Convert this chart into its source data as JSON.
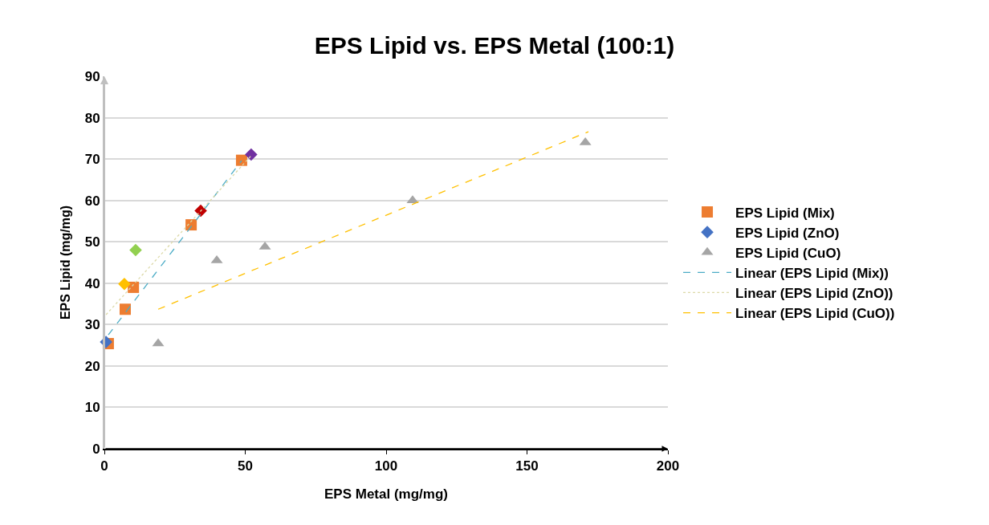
{
  "chart_data": {
    "type": "scatter",
    "title": "EPS Lipid vs. EPS Metal (100:1)",
    "xlabel": "EPS Metal (mg/mg)",
    "ylabel": "EPS Lipid (mg/mg)",
    "xlim": [
      0,
      200
    ],
    "xticks": [
      0,
      50,
      100,
      150,
      200
    ],
    "ylim": [
      0,
      90
    ],
    "yticks": [
      0,
      10,
      20,
      30,
      40,
      50,
      60,
      70,
      80,
      90
    ],
    "grid": "y",
    "legend": "right",
    "series": [
      {
        "name": "EPS Lipid (Mix)",
        "color": "#ed7d31",
        "marker": "square",
        "x": [
          1.4,
          7.4,
          10.3,
          30.8,
          48.7
        ],
        "values": [
          25.4,
          33.7,
          39,
          54.1,
          69.7
        ]
      },
      {
        "name": "EPS Lipid (ZnO)",
        "colors": [
          "#4472c4",
          "#ffc000",
          "#92d050",
          "#c00000",
          "#7030a0"
        ],
        "marker": "diamond",
        "x": [
          0.6,
          7.1,
          11.1,
          34.2,
          52.1
        ],
        "values": [
          25.8,
          39.8,
          48,
          57.5,
          71.1
        ]
      },
      {
        "name": "EPS Lipid (CuO)",
        "color": "#a5a5a5",
        "marker": "triangle",
        "x": [
          19.1,
          39.9,
          57,
          109.4,
          170.7
        ],
        "values": [
          25.4,
          45.5,
          48.8,
          60,
          74
        ]
      },
      {
        "name": "Linear (EPS Lipid (Mix))",
        "type": "line",
        "color": "#4bacc6",
        "line_style": "dashed",
        "marker": "none",
        "x": [
          1.4,
          48.7
        ],
        "values": [
          27.5,
          69.6
        ]
      },
      {
        "name": "Linear (EPS Lipid (ZnO))",
        "type": "line",
        "color": "#dcd9a8",
        "line_style": "dotted",
        "marker": "none",
        "x": [
          0.6,
          52.1
        ],
        "values": [
          32.4,
          70.8
        ]
      },
      {
        "name": "Linear (EPS Lipid (CuO))",
        "type": "line",
        "color": "#ffc000",
        "line_style": "dashed",
        "marker": "none",
        "x": [
          19.1,
          171.8
        ],
        "values": [
          33.7,
          76.6
        ]
      }
    ]
  }
}
